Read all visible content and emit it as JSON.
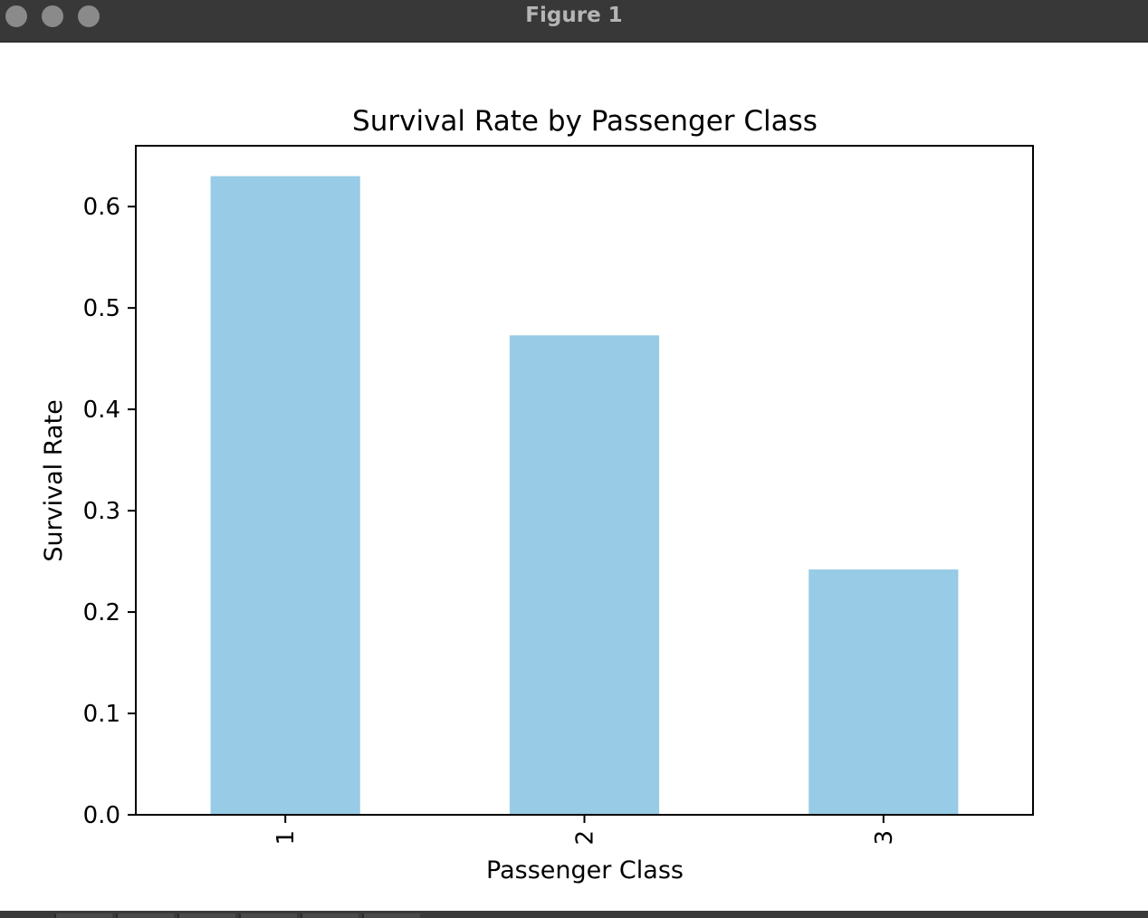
{
  "window": {
    "title": "Figure 1"
  },
  "chart_data": {
    "type": "bar",
    "title": "Survival Rate by Passenger Class",
    "xlabel": "Passenger Class",
    "ylabel": "Survival Rate",
    "categories": [
      "1",
      "2",
      "3"
    ],
    "values": [
      0.63,
      0.473,
      0.242
    ],
    "ylim": [
      0.0,
      0.66
    ],
    "yticks": [
      0.0,
      0.1,
      0.2,
      0.3,
      0.4,
      0.5,
      0.6
    ],
    "ytick_labels": [
      "0.0",
      "0.1",
      "0.2",
      "0.3",
      "0.4",
      "0.5",
      "0.6"
    ],
    "bar_color": "#97cbe6",
    "xtick_rotation": "vertical",
    "grid": false,
    "legend": "none"
  }
}
